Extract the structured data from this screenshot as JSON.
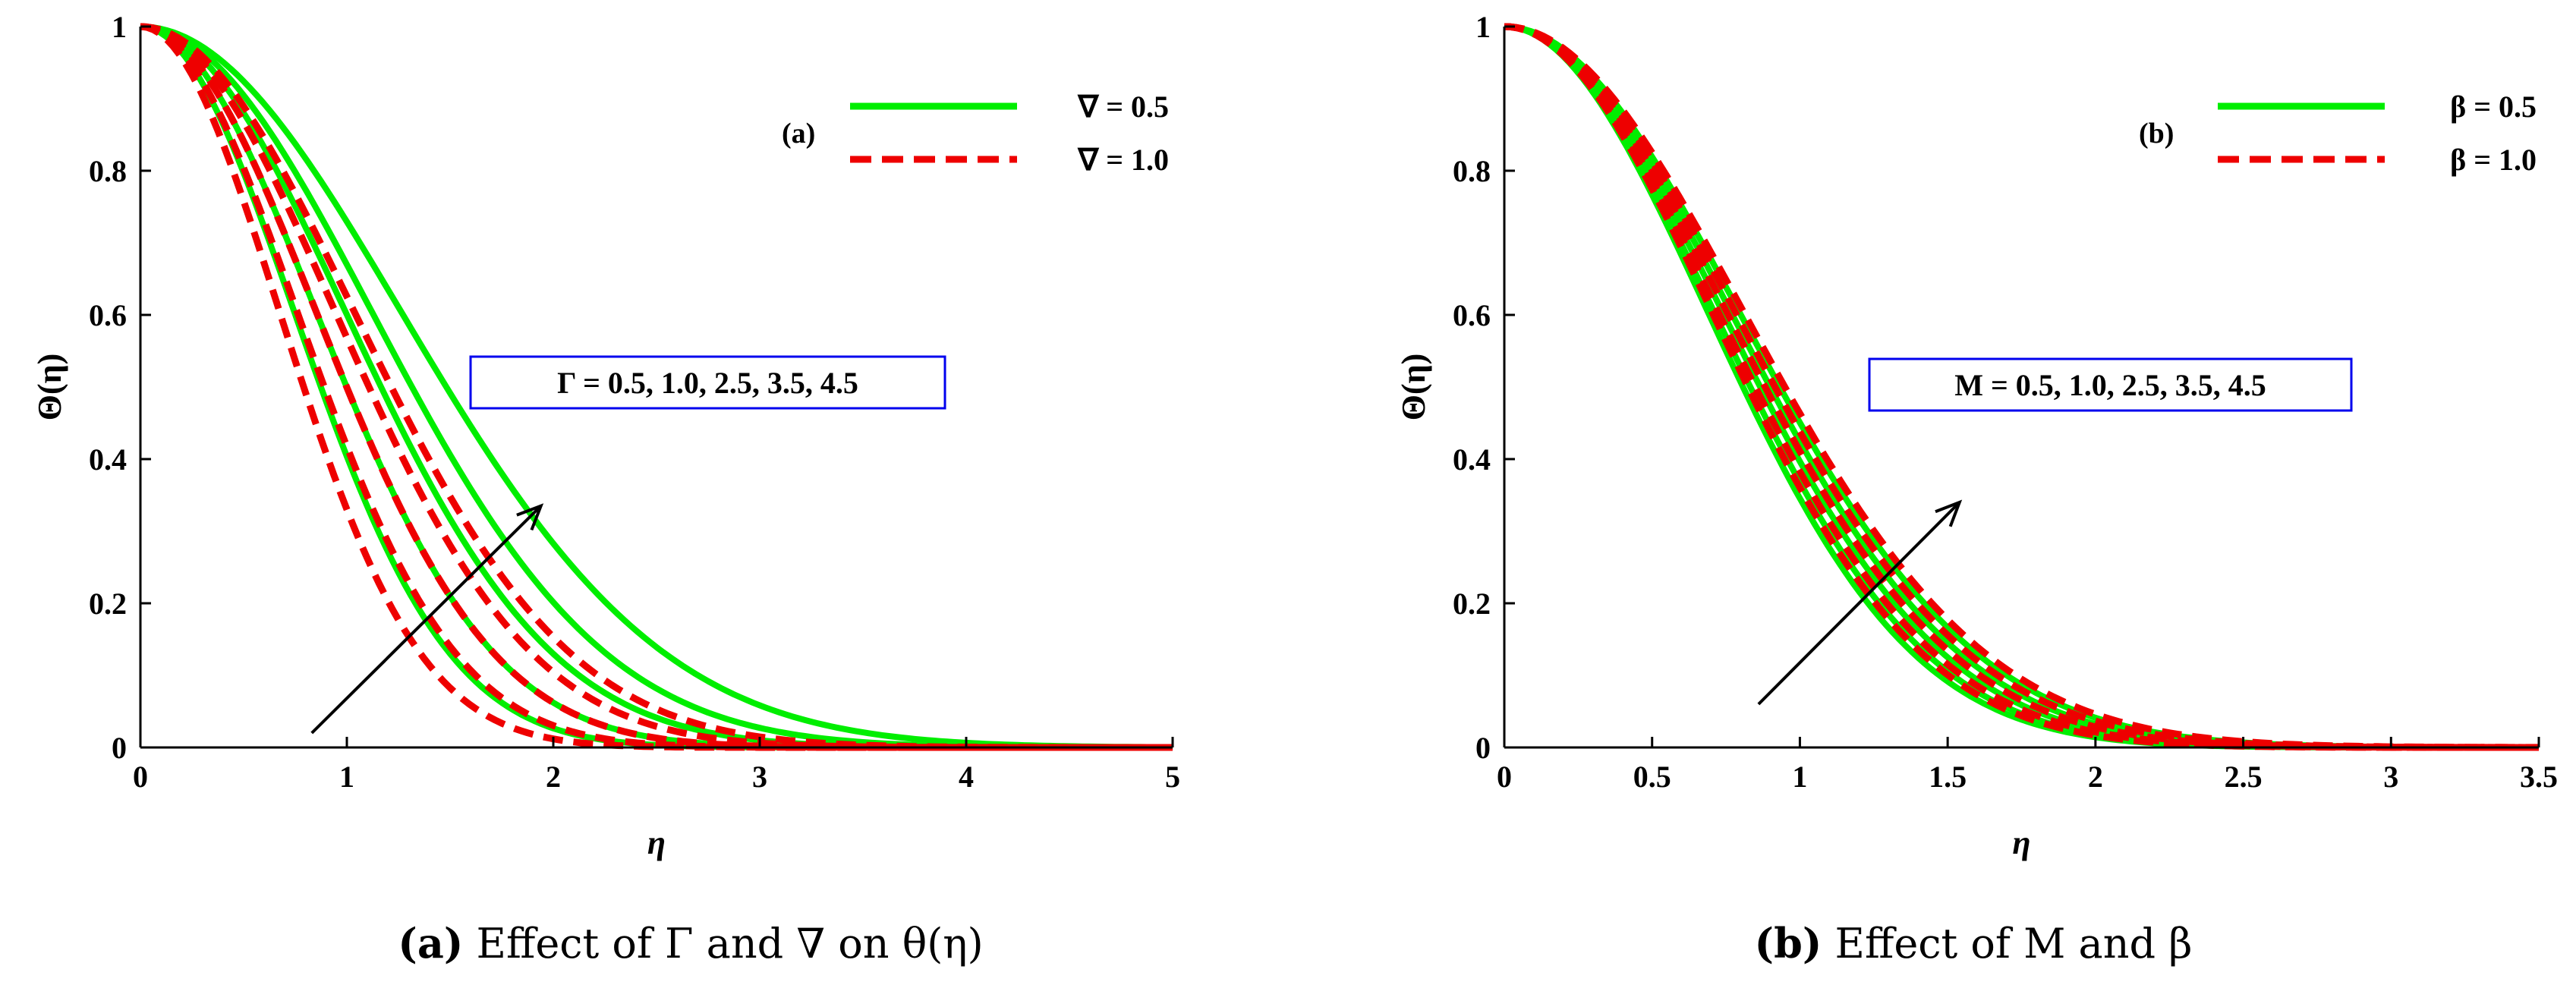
{
  "chart_data": [
    {
      "type": "line",
      "panel_tag": "(a)",
      "caption_bold": "(a)",
      "caption_text": " Effect of Γ and ∇ on θ(η)",
      "xlabel": "η",
      "ylabel": "Θ(η)",
      "xlim": [
        0,
        5
      ],
      "ylim": [
        0,
        1
      ],
      "xticks": [
        "0",
        "1",
        "2",
        "3",
        "4",
        "5"
      ],
      "yticks": [
        "0",
        "0.2",
        "0.4",
        "0.6",
        "0.8",
        "1"
      ],
      "annotation": "Γ = 0.5, 1.0, 2.5, 3.5, 4.5",
      "arrow_from": [
        0.83,
        0.02
      ],
      "arrow_to": [
        1.94,
        0.335
      ],
      "legend": [
        {
          "label": "∇ = 0.5",
          "color": "#00ee00",
          "style": "solid"
        },
        {
          "label": "∇ = 1.0",
          "color": "#ee0000",
          "style": "dashed"
        }
      ],
      "param_values": [
        0.5,
        1.0,
        2.5,
        3.5,
        4.5
      ],
      "profile": "gauss",
      "series": [
        {
          "name": "∇ = 0.5",
          "color": "#00ee00",
          "style": "solid",
          "decay": [
            1.05,
            1.2,
            1.4,
            1.58,
            1.78
          ]
        },
        {
          "name": "∇ = 1.0",
          "color": "#ee0000",
          "style": "dashed",
          "decay": [
            0.95,
            1.07,
            1.2,
            1.33,
            1.46
          ]
        }
      ]
    },
    {
      "type": "line",
      "panel_tag": "(b)",
      "caption_bold": "(b)",
      "caption_text": " Effect of M and β",
      "xlabel": "η",
      "ylabel": "Θ(η)",
      "xlim": [
        0,
        3.5
      ],
      "ylim": [
        0,
        1
      ],
      "xticks": [
        "0",
        "0.5",
        "1",
        "1.5",
        "2",
        "2.5",
        "3",
        "3.5"
      ],
      "yticks": [
        "0",
        "0.2",
        "0.4",
        "0.6",
        "0.8",
        "1"
      ],
      "annotation": "M = 0.5, 1.0, 2.5, 3.5, 4.5",
      "arrow_from": [
        0.86,
        0.06
      ],
      "arrow_to": [
        1.54,
        0.34
      ],
      "legend": [
        {
          "label": "β = 0.5",
          "color": "#00ee00",
          "style": "solid"
        },
        {
          "label": "β = 1.0",
          "color": "#ee0000",
          "style": "dashed"
        }
      ],
      "param_values": [
        0.5,
        1.0,
        2.5,
        3.5,
        4.5
      ],
      "profile": "gauss",
      "series": [
        {
          "name": "β = 0.5",
          "color": "#00ee00",
          "style": "solid",
          "decay": [
            0.97,
            1.0,
            1.04,
            1.08,
            1.12
          ]
        },
        {
          "name": "β = 1.0",
          "color": "#ee0000",
          "style": "dashed",
          "decay": [
            0.99,
            1.02,
            1.06,
            1.1,
            1.14
          ]
        }
      ]
    }
  ]
}
